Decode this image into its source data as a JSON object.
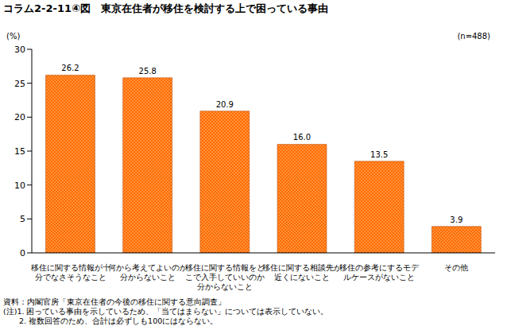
{
  "chart_data": {
    "type": "bar",
    "title": "コラム2-2-11④図　東京在住者が移住を検討する上で困っている事由",
    "y_label": "(%)",
    "annotation": "(n=488)",
    "categories": [
      "移住に関する情報が十分でなさそうなこと",
      "何から考えてよいのか分からないこと",
      "移住に関する情報をどこで入手していいのか分からないこと",
      "移住に関する相談先が近くにないこと",
      "移住の参考にするモデルケースがないこと",
      "その他"
    ],
    "values": [
      26.2,
      25.8,
      20.9,
      16.0,
      13.5,
      3.9
    ],
    "value_labels": [
      "26.2",
      "25.8",
      "20.9",
      "16.0",
      "13.5",
      "3.9"
    ],
    "data_labels": true,
    "color": "#ff6a00",
    "ylim": [
      0,
      30
    ],
    "yticks": [
      0,
      5,
      10,
      15,
      20,
      25,
      30
    ],
    "grid": false,
    "notes": [
      "資料：内閣官房「東京在住者の今後の移住に関する意向調査」",
      "(注)1. 困っている事由を示しているため、「当てはまらない」については表示していない。",
      "　　2. 複数回答のため、合計は必ずしも100にはならない。"
    ]
  }
}
